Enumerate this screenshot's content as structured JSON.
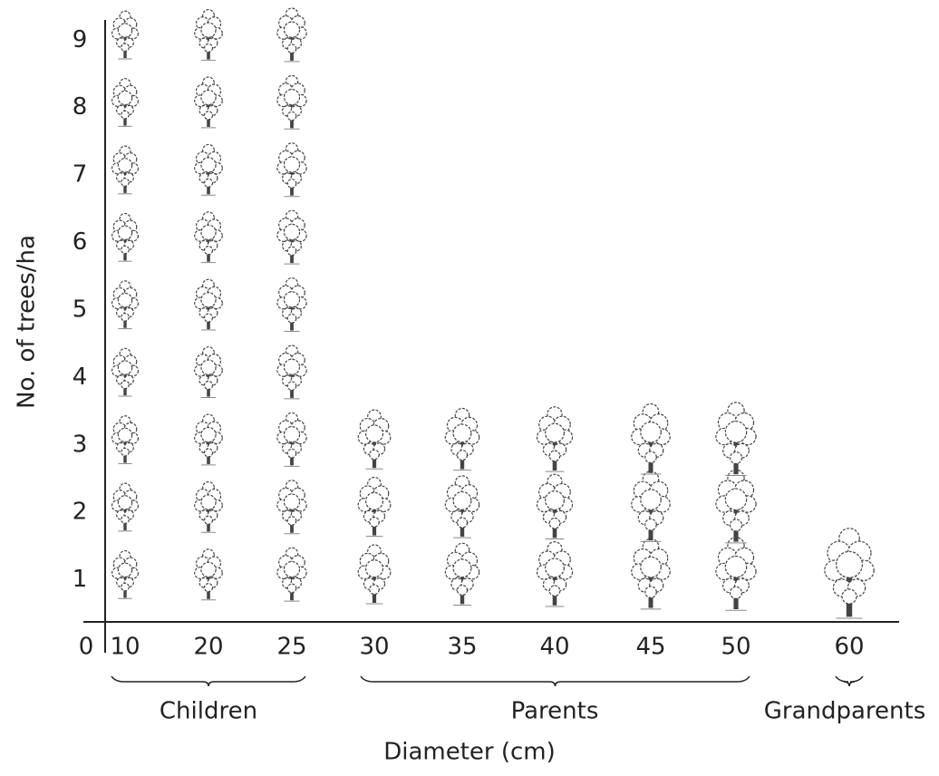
{
  "chart_data": {
    "type": "pictograph",
    "x_label": "Diameter (cm)",
    "y_label": "No. of trees/ha",
    "categories": [
      "10",
      "20",
      "25",
      "30",
      "35",
      "40",
      "45",
      "50",
      "60"
    ],
    "values": [
      9,
      9,
      9,
      3,
      3,
      3,
      3,
      3,
      1
    ],
    "ylim": [
      0,
      9.3
    ],
    "yticks": [
      0,
      1,
      2,
      3,
      4,
      5,
      6,
      7,
      8,
      9
    ],
    "groups": [
      {
        "label": "Children"
      },
      {
        "label": "Parents"
      },
      {
        "label": "Grandparents"
      }
    ],
    "color": "#444444"
  }
}
